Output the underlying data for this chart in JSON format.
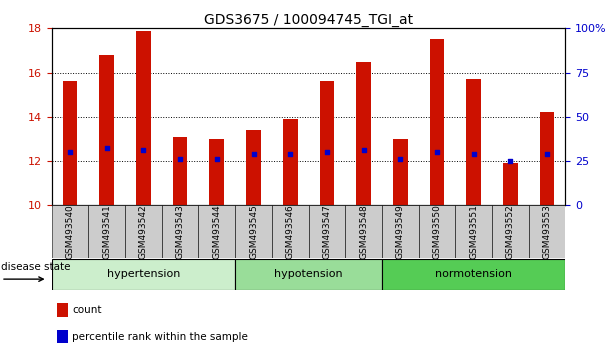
{
  "title": "GDS3675 / 100094745_TGI_at",
  "samples": [
    "GSM493540",
    "GSM493541",
    "GSM493542",
    "GSM493543",
    "GSM493544",
    "GSM493545",
    "GSM493546",
    "GSM493547",
    "GSM493548",
    "GSM493549",
    "GSM493550",
    "GSM493551",
    "GSM493552",
    "GSM493553"
  ],
  "bar_values": [
    15.6,
    16.8,
    17.9,
    13.1,
    13.0,
    13.4,
    13.9,
    15.6,
    16.5,
    13.0,
    17.5,
    15.7,
    11.9,
    14.2
  ],
  "bar_bottom": 10.0,
  "blue_dot_values": [
    12.4,
    12.6,
    12.5,
    12.1,
    12.1,
    12.3,
    12.3,
    12.4,
    12.5,
    12.1,
    12.4,
    12.3,
    12.0,
    12.3
  ],
  "ylim_left": [
    10,
    18
  ],
  "ylim_right": [
    0,
    100
  ],
  "yticks_left": [
    10,
    12,
    14,
    16,
    18
  ],
  "yticks_right": [
    0,
    25,
    50,
    75,
    100
  ],
  "bar_color": "#cc1100",
  "dot_color": "#0000cc",
  "groups": [
    {
      "label": "hypertension",
      "start": 0,
      "end": 5,
      "color": "#cceecc"
    },
    {
      "label": "hypotension",
      "start": 5,
      "end": 9,
      "color": "#99dd99"
    },
    {
      "label": "normotension",
      "start": 9,
      "end": 14,
      "color": "#55cc55"
    }
  ],
  "group_label_prefix": "disease state",
  "legend_items": [
    {
      "label": "count",
      "color": "#cc1100"
    },
    {
      "label": "percentile rank within the sample",
      "color": "#0000cc"
    }
  ],
  "background_color": "#ffffff",
  "tick_label_bg": "#cccccc",
  "grid_color": "#000000",
  "left_tick_color": "#cc1100",
  "right_tick_color": "#0000cc",
  "bar_width": 0.4
}
